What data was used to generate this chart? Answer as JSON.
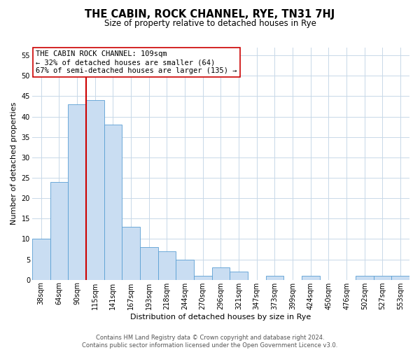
{
  "title": "THE CABIN, ROCK CHANNEL, RYE, TN31 7HJ",
  "subtitle": "Size of property relative to detached houses in Rye",
  "xlabel": "Distribution of detached houses by size in Rye",
  "ylabel": "Number of detached properties",
  "bar_labels": [
    "38sqm",
    "64sqm",
    "90sqm",
    "115sqm",
    "141sqm",
    "167sqm",
    "193sqm",
    "218sqm",
    "244sqm",
    "270sqm",
    "296sqm",
    "321sqm",
    "347sqm",
    "373sqm",
    "399sqm",
    "424sqm",
    "450sqm",
    "476sqm",
    "502sqm",
    "527sqm",
    "553sqm"
  ],
  "bar_values": [
    10,
    24,
    43,
    44,
    38,
    13,
    8,
    7,
    5,
    1,
    3,
    2,
    0,
    1,
    0,
    1,
    0,
    0,
    1,
    1,
    1
  ],
  "bar_color": "#c9ddf2",
  "bar_edge_color": "#5a9fd4",
  "vline_index": 3,
  "vline_color": "#cc0000",
  "ylim": [
    0,
    57
  ],
  "yticks": [
    0,
    5,
    10,
    15,
    20,
    25,
    30,
    35,
    40,
    45,
    50,
    55
  ],
  "annotation_line1": "THE CABIN ROCK CHANNEL: 109sqm",
  "annotation_line2": "← 32% of detached houses are smaller (64)",
  "annotation_line3": "67% of semi-detached houses are larger (135) →",
  "footer_line1": "Contains HM Land Registry data © Crown copyright and database right 2024.",
  "footer_line2": "Contains public sector information licensed under the Open Government Licence v3.0.",
  "background_color": "#ffffff",
  "grid_color": "#c8d8e8",
  "title_fontsize": 10.5,
  "subtitle_fontsize": 8.5,
  "axis_label_fontsize": 8,
  "tick_fontsize": 7,
  "annotation_fontsize": 7.5,
  "footer_fontsize": 6
}
